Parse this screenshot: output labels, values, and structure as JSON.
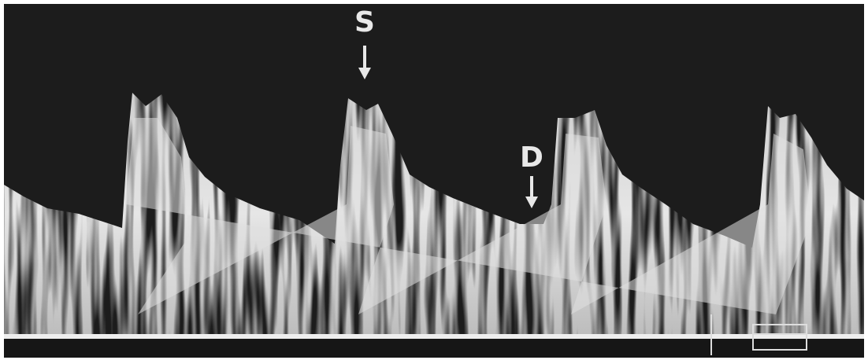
{
  "annotations": [
    {
      "label": "S"
    },
    {
      "label": "D"
    }
  ]
}
